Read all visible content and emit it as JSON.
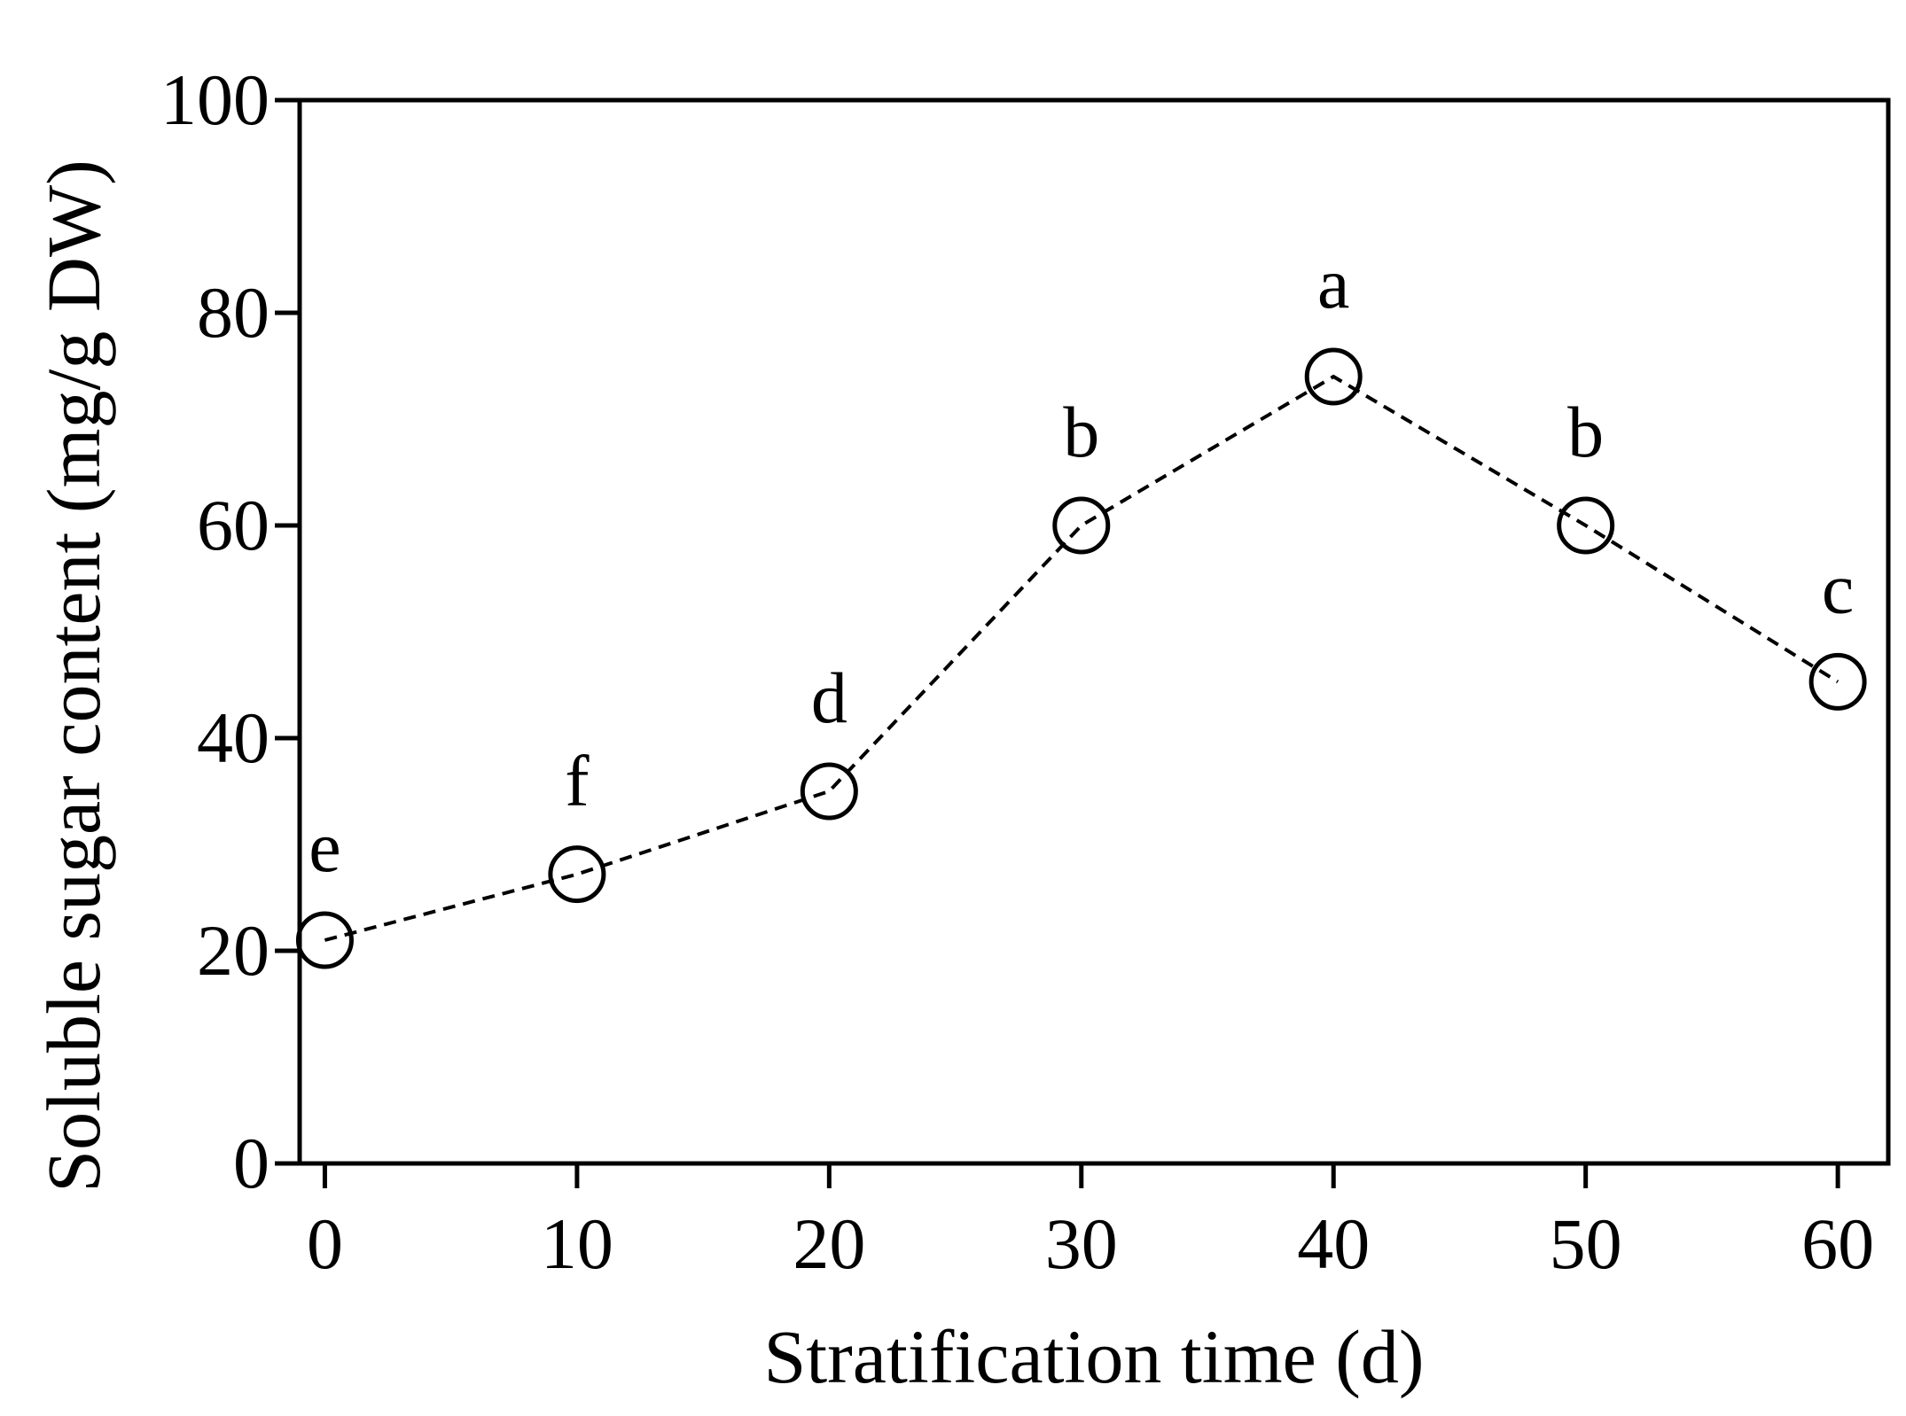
{
  "chart_data": {
    "type": "line",
    "xlabel": "Stratification time (d)",
    "ylabel": "Soluble sugar content (mg/g DW)",
    "xlim": [
      -1,
      62
    ],
    "ylim": [
      0,
      100
    ],
    "x_ticks": [
      0,
      10,
      20,
      30,
      40,
      50,
      60
    ],
    "y_ticks": [
      0,
      20,
      40,
      60,
      80,
      100
    ],
    "grid": false,
    "legend": "none",
    "series": [
      {
        "name": "Soluble sugar content",
        "line_style": "dashed",
        "marker": "open-circle",
        "x": [
          0,
          10,
          20,
          30,
          40,
          50,
          60
        ],
        "values": [
          21,
          27.2,
          35,
          60,
          74,
          60,
          45.3
        ],
        "labels": [
          "e",
          "f",
          "d",
          "b",
          "a",
          "b",
          "c"
        ]
      }
    ]
  }
}
